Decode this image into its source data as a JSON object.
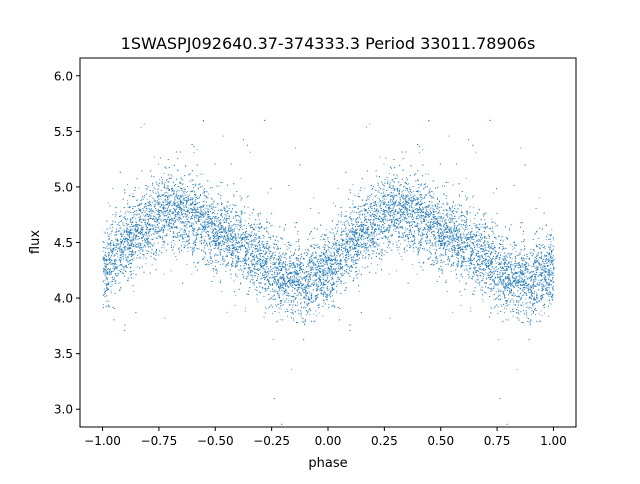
{
  "chart_data": {
    "type": "scatter",
    "title": "1SWASPJ092640.37-374333.3 Period 33011.78906s",
    "xlabel": "phase",
    "ylabel": "flux",
    "xlim": [
      -1.1,
      1.1
    ],
    "ylim": [
      2.84,
      6.16
    ],
    "xticks": [
      -1.0,
      -0.75,
      -0.5,
      -0.25,
      0.0,
      0.25,
      0.5,
      0.75,
      1.0
    ],
    "xtick_labels": [
      "−1.00",
      "−0.75",
      "−0.50",
      "−0.25",
      "0.00",
      "0.25",
      "0.50",
      "0.75",
      "1.00"
    ],
    "yticks": [
      3.0,
      3.5,
      4.0,
      4.5,
      5.0,
      5.5,
      6.0
    ],
    "ytick_labels": [
      "3.0",
      "3.5",
      "4.0",
      "4.5",
      "5.0",
      "5.5",
      "6.0"
    ],
    "grid": false,
    "legend": "none",
    "marker_color": "#1f77b4",
    "approx_mean_curve": {
      "phase": [
        0.0,
        0.1,
        0.2,
        0.3,
        0.4,
        0.5,
        0.6,
        0.7,
        0.8,
        0.9,
        1.0
      ],
      "flux": [
        4.25,
        4.5,
        4.7,
        4.8,
        4.75,
        4.6,
        4.5,
        4.35,
        4.2,
        4.15,
        4.25
      ]
    },
    "approx_scatter_std": 0.17,
    "approx_point_count": 14000
  }
}
